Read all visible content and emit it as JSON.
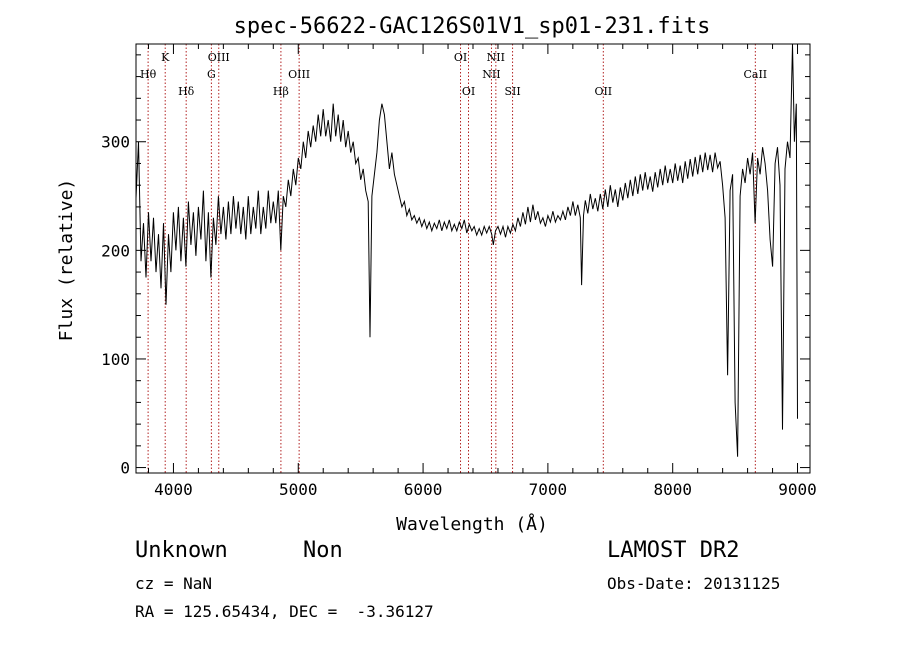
{
  "chart_data": {
    "type": "line",
    "title": "spec-56622-GAC126S01V1_sp01-231.fits",
    "xlabel": "Wavelength (Å)",
    "ylabel": "Flux (relative)",
    "xlim": [
      3700,
      9100
    ],
    "ylim": [
      -5,
      390
    ],
    "xticks": [
      {
        "v": 4000,
        "label": "4000"
      },
      {
        "v": 5000,
        "label": "5000"
      },
      {
        "v": 6000,
        "label": "6000"
      },
      {
        "v": 7000,
        "label": "7000"
      },
      {
        "v": 8000,
        "label": "8000"
      },
      {
        "v": 9000,
        "label": "9000"
      }
    ],
    "yticks": [
      {
        "v": 0,
        "label": "0"
      },
      {
        "v": 100,
        "label": "100"
      },
      {
        "v": 200,
        "label": "200"
      },
      {
        "v": 300,
        "label": "300"
      }
    ],
    "lines": [
      {
        "x": 3797,
        "label": "Hθ",
        "row": 2
      },
      {
        "x": 3934,
        "label": "K",
        "row": 1
      },
      {
        "x": 4102,
        "label": "Hδ",
        "row": 3
      },
      {
        "x": 4304,
        "label": "G",
        "row": 2
      },
      {
        "x": 4363,
        "label": "OIII",
        "row": 1
      },
      {
        "x": 4861,
        "label": "Hβ",
        "row": 3
      },
      {
        "x": 5007,
        "label": "OIII",
        "row": 2
      },
      {
        "x": 6300,
        "label": "OI",
        "row": 1
      },
      {
        "x": 6364,
        "label": "OI",
        "row": 3
      },
      {
        "x": 6548,
        "label": "NII",
        "row": 2
      },
      {
        "x": 6583,
        "label": "NII",
        "row": 1
      },
      {
        "x": 6717,
        "label": "SII",
        "row": 3
      },
      {
        "x": 7444,
        "label": "OII",
        "row": 3
      },
      {
        "x": 8662,
        "label": "CaII",
        "row": 2
      }
    ],
    "series": [
      {
        "points": [
          [
            3700,
            248
          ],
          [
            3720,
            300
          ],
          [
            3740,
            190
          ],
          [
            3760,
            225
          ],
          [
            3780,
            175
          ],
          [
            3800,
            235
          ],
          [
            3820,
            190
          ],
          [
            3840,
            230
          ],
          [
            3860,
            180
          ],
          [
            3880,
            215
          ],
          [
            3900,
            165
          ],
          [
            3920,
            225
          ],
          [
            3940,
            150
          ],
          [
            3960,
            215
          ],
          [
            3980,
            180
          ],
          [
            4000,
            235
          ],
          [
            4020,
            200
          ],
          [
            4040,
            240
          ],
          [
            4060,
            190
          ],
          [
            4080,
            230
          ],
          [
            4100,
            185
          ],
          [
            4120,
            245
          ],
          [
            4140,
            205
          ],
          [
            4160,
            235
          ],
          [
            4180,
            195
          ],
          [
            4200,
            240
          ],
          [
            4220,
            210
          ],
          [
            4240,
            255
          ],
          [
            4260,
            190
          ],
          [
            4280,
            235
          ],
          [
            4300,
            175
          ],
          [
            4320,
            230
          ],
          [
            4340,
            205
          ],
          [
            4360,
            250
          ],
          [
            4380,
            215
          ],
          [
            4400,
            240
          ],
          [
            4420,
            210
          ],
          [
            4440,
            245
          ],
          [
            4460,
            215
          ],
          [
            4480,
            250
          ],
          [
            4500,
            220
          ],
          [
            4520,
            245
          ],
          [
            4540,
            215
          ],
          [
            4560,
            240
          ],
          [
            4580,
            210
          ],
          [
            4600,
            250
          ],
          [
            4620,
            215
          ],
          [
            4640,
            240
          ],
          [
            4660,
            220
          ],
          [
            4680,
            255
          ],
          [
            4700,
            215
          ],
          [
            4720,
            240
          ],
          [
            4740,
            220
          ],
          [
            4760,
            255
          ],
          [
            4780,
            225
          ],
          [
            4800,
            245
          ],
          [
            4820,
            225
          ],
          [
            4840,
            255
          ],
          [
            4860,
            200
          ],
          [
            4880,
            250
          ],
          [
            4900,
            240
          ],
          [
            4920,
            265
          ],
          [
            4940,
            250
          ],
          [
            4960,
            275
          ],
          [
            4980,
            260
          ],
          [
            5000,
            285
          ],
          [
            5020,
            275
          ],
          [
            5040,
            300
          ],
          [
            5060,
            285
          ],
          [
            5080,
            310
          ],
          [
            5100,
            295
          ],
          [
            5120,
            315
          ],
          [
            5140,
            300
          ],
          [
            5160,
            325
          ],
          [
            5180,
            305
          ],
          [
            5200,
            330
          ],
          [
            5220,
            305
          ],
          [
            5240,
            320
          ],
          [
            5260,
            300
          ],
          [
            5280,
            335
          ],
          [
            5300,
            305
          ],
          [
            5320,
            325
          ],
          [
            5340,
            300
          ],
          [
            5360,
            320
          ],
          [
            5380,
            295
          ],
          [
            5400,
            310
          ],
          [
            5420,
            290
          ],
          [
            5440,
            300
          ],
          [
            5460,
            280
          ],
          [
            5480,
            285
          ],
          [
            5500,
            265
          ],
          [
            5520,
            275
          ],
          [
            5540,
            255
          ],
          [
            5560,
            245
          ],
          [
            5575,
            120
          ],
          [
            5590,
            250
          ],
          [
            5610,
            270
          ],
          [
            5630,
            290
          ],
          [
            5650,
            320
          ],
          [
            5670,
            335
          ],
          [
            5690,
            325
          ],
          [
            5710,
            300
          ],
          [
            5730,
            275
          ],
          [
            5750,
            290
          ],
          [
            5770,
            270
          ],
          [
            5790,
            260
          ],
          [
            5810,
            250
          ],
          [
            5830,
            240
          ],
          [
            5850,
            245
          ],
          [
            5870,
            232
          ],
          [
            5890,
            238
          ],
          [
            5910,
            228
          ],
          [
            5930,
            232
          ],
          [
            5950,
            225
          ],
          [
            5970,
            230
          ],
          [
            5990,
            222
          ],
          [
            6010,
            228
          ],
          [
            6030,
            220
          ],
          [
            6050,
            226
          ],
          [
            6070,
            218
          ],
          [
            6090,
            225
          ],
          [
            6110,
            220
          ],
          [
            6130,
            228
          ],
          [
            6150,
            218
          ],
          [
            6170,
            226
          ],
          [
            6190,
            220
          ],
          [
            6210,
            228
          ],
          [
            6230,
            218
          ],
          [
            6250,
            224
          ],
          [
            6270,
            218
          ],
          [
            6290,
            226
          ],
          [
            6310,
            220
          ],
          [
            6330,
            228
          ],
          [
            6350,
            216
          ],
          [
            6370,
            224
          ],
          [
            6390,
            218
          ],
          [
            6410,
            222
          ],
          [
            6430,
            214
          ],
          [
            6450,
            220
          ],
          [
            6470,
            214
          ],
          [
            6490,
            222
          ],
          [
            6510,
            216
          ],
          [
            6530,
            222
          ],
          [
            6550,
            215
          ],
          [
            6563,
            205
          ],
          [
            6580,
            218
          ],
          [
            6600,
            222
          ],
          [
            6620,
            215
          ],
          [
            6640,
            222
          ],
          [
            6660,
            212
          ],
          [
            6680,
            222
          ],
          [
            6700,
            216
          ],
          [
            6720,
            224
          ],
          [
            6740,
            218
          ],
          [
            6760,
            230
          ],
          [
            6780,
            222
          ],
          [
            6800,
            235
          ],
          [
            6820,
            224
          ],
          [
            6840,
            240
          ],
          [
            6860,
            226
          ],
          [
            6880,
            242
          ],
          [
            6900,
            228
          ],
          [
            6920,
            236
          ],
          [
            6940,
            225
          ],
          [
            6960,
            230
          ],
          [
            6980,
            222
          ],
          [
            7000,
            232
          ],
          [
            7020,
            226
          ],
          [
            7040,
            236
          ],
          [
            7060,
            226
          ],
          [
            7080,
            232
          ],
          [
            7100,
            228
          ],
          [
            7120,
            236
          ],
          [
            7140,
            228
          ],
          [
            7160,
            240
          ],
          [
            7180,
            232
          ],
          [
            7200,
            245
          ],
          [
            7220,
            232
          ],
          [
            7240,
            242
          ],
          [
            7260,
            230
          ],
          [
            7270,
            168
          ],
          [
            7285,
            232
          ],
          [
            7300,
            246
          ],
          [
            7320,
            234
          ],
          [
            7340,
            252
          ],
          [
            7360,
            238
          ],
          [
            7380,
            248
          ],
          [
            7400,
            236
          ],
          [
            7420,
            252
          ],
          [
            7440,
            238
          ],
          [
            7460,
            256
          ],
          [
            7480,
            240
          ],
          [
            7500,
            260
          ],
          [
            7520,
            244
          ],
          [
            7540,
            256
          ],
          [
            7560,
            240
          ],
          [
            7580,
            258
          ],
          [
            7600,
            246
          ],
          [
            7620,
            262
          ],
          [
            7640,
            248
          ],
          [
            7660,
            265
          ],
          [
            7680,
            250
          ],
          [
            7700,
            268
          ],
          [
            7720,
            252
          ],
          [
            7740,
            270
          ],
          [
            7760,
            255
          ],
          [
            7780,
            272
          ],
          [
            7800,
            256
          ],
          [
            7820,
            268
          ],
          [
            7840,
            254
          ],
          [
            7860,
            272
          ],
          [
            7880,
            258
          ],
          [
            7900,
            275
          ],
          [
            7920,
            260
          ],
          [
            7940,
            278
          ],
          [
            7960,
            262
          ],
          [
            7980,
            275
          ],
          [
            8000,
            262
          ],
          [
            8020,
            280
          ],
          [
            8040,
            264
          ],
          [
            8060,
            278
          ],
          [
            8080,
            262
          ],
          [
            8100,
            282
          ],
          [
            8120,
            266
          ],
          [
            8140,
            284
          ],
          [
            8160,
            268
          ],
          [
            8180,
            286
          ],
          [
            8200,
            270
          ],
          [
            8220,
            288
          ],
          [
            8240,
            272
          ],
          [
            8260,
            290
          ],
          [
            8280,
            274
          ],
          [
            8300,
            288
          ],
          [
            8320,
            272
          ],
          [
            8340,
            290
          ],
          [
            8360,
            276
          ],
          [
            8380,
            282
          ],
          [
            8400,
            260
          ],
          [
            8420,
            230
          ],
          [
            8440,
            85
          ],
          [
            8460,
            255
          ],
          [
            8480,
            270
          ],
          [
            8500,
            60
          ],
          [
            8520,
            10
          ],
          [
            8540,
            250
          ],
          [
            8560,
            275
          ],
          [
            8580,
            262
          ],
          [
            8600,
            285
          ],
          [
            8620,
            270
          ],
          [
            8640,
            290
          ],
          [
            8660,
            225
          ],
          [
            8680,
            285
          ],
          [
            8700,
            270
          ],
          [
            8720,
            295
          ],
          [
            8740,
            280
          ],
          [
            8760,
            255
          ],
          [
            8780,
            210
          ],
          [
            8800,
            185
          ],
          [
            8820,
            280
          ],
          [
            8840,
            295
          ],
          [
            8860,
            260
          ],
          [
            8880,
            35
          ],
          [
            8900,
            275
          ],
          [
            8920,
            300
          ],
          [
            8940,
            285
          ],
          [
            8960,
            390
          ],
          [
            8975,
            300
          ],
          [
            8990,
            335
          ],
          [
            9000,
            45
          ]
        ]
      }
    ]
  },
  "info": {
    "object_class": "Unknown",
    "object_subclass": "Non",
    "cz": "cz = NaN",
    "radec": "RA = 125.65434, DEC =  -3.36127",
    "survey": "LAMOST DR2",
    "obs_date": "Obs-Date: 20131125"
  }
}
